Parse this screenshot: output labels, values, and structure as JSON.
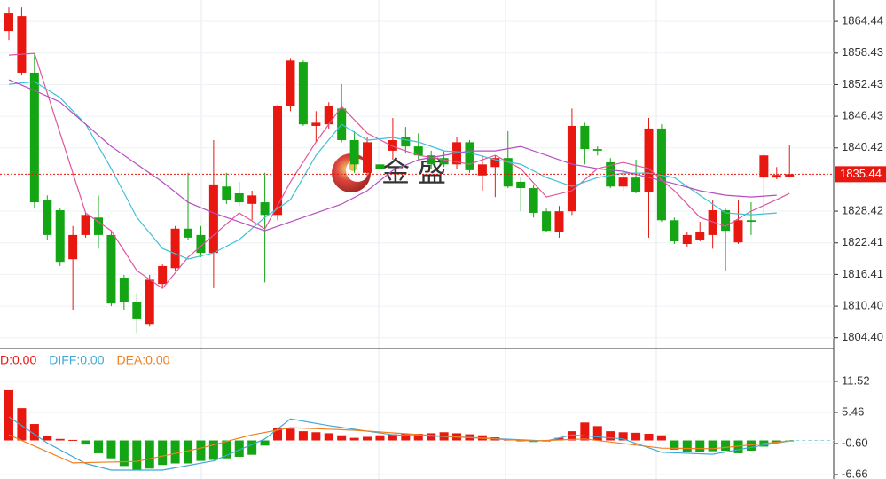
{
  "chart_data": [
    {
      "type": "candlestick",
      "watermark": "金 盛",
      "ylim": [
        1802.5,
        1868.5
      ],
      "yticks": [
        1864.44,
        1858.43,
        1852.43,
        1846.43,
        {
          "value": 1840.42,
          "label": "1840.42"
        },
        1828.42,
        1822.41,
        1816.41,
        {
          "value": 1810.4,
          "label": "1810.40"
        },
        {
          "value": 1804.4,
          "label": "1804.40"
        }
      ],
      "grid": true,
      "up_color": "#e8170f",
      "down_color": "#14a514",
      "open": [
        1862.59,
        1854.7,
        1854.7,
        1830.6,
        1828.6,
        1819.3,
        1823.9,
        1827.2,
        1823.9,
        1815.8,
        1811.2,
        1807.0,
        1814.6,
        1817.6,
        1825.1,
        1823.9,
        1820.5,
        1833.1,
        1831.8,
        1829.8,
        1830.1,
        1827.7,
        1848.3,
        1856.7,
        1844.6,
        1844.9,
        1847.9,
        1841.9,
        1835.7,
        1837.3,
        1839.9,
        1842.4,
        1840.7,
        1839.0,
        1838.5,
        1837.3,
        1841.5,
        1835.2,
        1836.8,
        1838.5,
        1834.0,
        1832.8,
        1828.4,
        1824.4,
        1828.4,
        1844.6,
        1840.2,
        1837.7,
        1833.1,
        1834.8,
        1832.0,
        1844.1,
        1826.7,
        1822.2,
        1823.0,
        1823.9,
        1828.6,
        1822.5,
        1826.7,
        1834.8,
        1834.8,
        1835.0
      ],
      "high": [
        1867.13,
        1867.13,
        1858.38,
        1831.4,
        1828.9,
        1825.6,
        1828.1,
        1831.4,
        1824.7,
        1816.3,
        1812.9,
        1816.3,
        1818.3,
        1825.6,
        1835.7,
        1825.6,
        1841.9,
        1835.7,
        1834.0,
        1832.3,
        1835.7,
        1848.6,
        1857.5,
        1857.0,
        1847.4,
        1849.1,
        1852.5,
        1843.6,
        1842.4,
        1841.9,
        1846.1,
        1844.4,
        1843.2,
        1839.9,
        1839.9,
        1842.4,
        1841.9,
        1839.0,
        1839.0,
        1843.6,
        1834.8,
        1833.5,
        1828.9,
        1829.4,
        1847.9,
        1845.2,
        1840.7,
        1838.5,
        1836.5,
        1838.2,
        1846.1,
        1844.9,
        1827.2,
        1824.4,
        1826.4,
        1830.6,
        1828.9,
        1830.6,
        1830.1,
        1839.4,
        1836.8,
        1841.0
      ],
      "low": [
        1860.9,
        1854.17,
        1828.9,
        1823.0,
        1818.0,
        1809.6,
        1823.4,
        1821.3,
        1810.4,
        1809.6,
        1805.3,
        1806.5,
        1813.8,
        1817.1,
        1823.0,
        1819.7,
        1813.8,
        1829.8,
        1829.4,
        1826.7,
        1814.9,
        1826.7,
        1847.4,
        1844.6,
        1841.5,
        1844.1,
        1841.5,
        1835.7,
        1834.8,
        1835.7,
        1838.2,
        1839.5,
        1838.2,
        1836.5,
        1836.8,
        1836.5,
        1835.7,
        1832.3,
        1831.1,
        1832.8,
        1828.4,
        1827.2,
        1824.4,
        1823.4,
        1827.7,
        1837.3,
        1839.0,
        1832.8,
        1832.3,
        1831.8,
        1823.4,
        1826.4,
        1822.2,
        1821.7,
        1822.7,
        1821.3,
        1817.1,
        1822.2,
        1823.9,
        1828.1,
        1834.5,
        1834.8
      ],
      "close": [
        1865.96,
        1865.45,
        1830.1,
        1823.9,
        1818.8,
        1823.9,
        1827.7,
        1823.9,
        1810.9,
        1811.2,
        1807.9,
        1815.4,
        1818.0,
        1825.1,
        1823.4,
        1820.5,
        1833.5,
        1830.6,
        1830.1,
        1831.4,
        1827.7,
        1848.3,
        1857.0,
        1844.9,
        1845.2,
        1848.3,
        1841.9,
        1837.3,
        1841.5,
        1836.5,
        1841.9,
        1840.7,
        1839.0,
        1837.3,
        1837.3,
        1841.5,
        1836.2,
        1837.3,
        1838.5,
        1833.1,
        1832.8,
        1828.1,
        1824.7,
        1828.4,
        1844.6,
        1840.2,
        1839.9,
        1833.1,
        1834.8,
        1832.0,
        1844.1,
        1826.7,
        1822.7,
        1823.9,
        1824.4,
        1828.6,
        1824.7,
        1826.7,
        1826.4,
        1839.0,
        1835.3,
        1835.44
      ],
      "lines": [
        {
          "color": "#e0569c",
          "x": [
            0,
            2,
            4,
            6,
            8,
            10,
            12,
            14,
            16,
            18,
            20,
            22,
            24,
            26,
            28,
            30,
            32,
            34,
            36,
            38,
            40,
            42,
            44,
            46,
            48,
            50,
            52,
            54,
            56,
            58,
            60,
            61
          ],
          "values": [
            1858.04,
            1858.38,
            1843.23,
            1828.08,
            1824.71,
            1817.13,
            1813.77,
            1819.66,
            1823.87,
            1828.08,
            1825.05,
            1833.97,
            1841.54,
            1848.28,
            1843.23,
            1840.7,
            1839.02,
            1838.18,
            1837.34,
            1839.02,
            1836.49,
            1831.11,
            1832.3,
            1836.49,
            1837.67,
            1836.49,
            1832.3,
            1827.24,
            1825.55,
            1828.41,
            1830.6,
            1831.78
          ]
        },
        {
          "color": "#3fc0d8",
          "x": [
            0,
            2,
            4,
            6,
            8,
            10,
            12,
            14,
            16,
            18,
            20,
            22,
            24,
            26,
            28,
            30,
            32,
            34,
            36,
            38,
            40,
            42,
            44,
            46,
            48,
            50,
            52,
            54,
            56,
            58,
            60
          ],
          "values": [
            1852.49,
            1852.99,
            1849.96,
            1844.91,
            1836.49,
            1827.24,
            1821.34,
            1819.32,
            1820.5,
            1823.03,
            1827.24,
            1830.6,
            1839.02,
            1844.91,
            1841.88,
            1842.39,
            1841.54,
            1839.86,
            1839.52,
            1838.18,
            1837.34,
            1834.81,
            1833.13,
            1834.81,
            1835.65,
            1835.65,
            1834.81,
            1831.44,
            1828.08,
            1827.74,
            1828.08
          ]
        },
        {
          "color": "#b54fc0",
          "x": [
            0,
            2,
            4,
            6,
            8,
            10,
            12,
            14,
            16,
            18,
            20,
            22,
            24,
            26,
            28,
            30,
            32,
            34,
            36,
            38,
            40,
            42,
            44,
            46,
            48,
            50,
            52,
            54,
            56,
            58,
            60
          ],
          "values": [
            1853.33,
            1851.31,
            1849.12,
            1844.91,
            1840.7,
            1837.34,
            1833.97,
            1830.1,
            1828.08,
            1826.39,
            1824.71,
            1826.39,
            1828.08,
            1829.76,
            1832.3,
            1836.16,
            1838.18,
            1839.02,
            1839.86,
            1839.86,
            1840.7,
            1839.02,
            1837.34,
            1836.49,
            1835.99,
            1834.81,
            1833.63,
            1832.3,
            1831.44,
            1831.11,
            1831.44
          ]
        }
      ],
      "last_price": {
        "value": 1835.44,
        "color": "#e8170f"
      }
    },
    {
      "type": "macd",
      "ylim": [
        -7.53,
        17.58
      ],
      "yticks": [
        11.52,
        5.46,
        {
          "value": -0.6,
          "label": "-0.60"
        },
        -6.66
      ],
      "legend": [
        {
          "text": "D:0.00",
          "color": "#e8170f"
        },
        {
          "text": "DIFF:0.00",
          "color": "#3fa9d8"
        },
        {
          "text": "DEA:0.00",
          "color": "#f08020"
        }
      ],
      "up_color": "#e8170f",
      "down_color": "#14a514",
      "values": [
        9.8,
        6.3,
        3.2,
        0.8,
        0.3,
        0.1,
        -0.8,
        -2.5,
        -3.5,
        -5.0,
        -5.8,
        -5.5,
        -4.8,
        -4.5,
        -4.5,
        -4.0,
        -3.8,
        -3.5,
        -3.2,
        -2.8,
        -1.0,
        2.5,
        2.3,
        1.8,
        1.6,
        1.4,
        1.0,
        0.5,
        0.7,
        1.0,
        1.2,
        1.3,
        1.3,
        1.4,
        1.6,
        1.4,
        1.2,
        1.0,
        0.6,
        0.2,
        -0.1,
        -0.3,
        -0.2,
        0.5,
        1.8,
        3.5,
        2.8,
        1.8,
        1.6,
        1.5,
        1.3,
        1.0,
        -1.8,
        -2.3,
        -2.3,
        -2.1,
        -2.0,
        -2.5,
        -2.0,
        -1.2,
        -0.4,
        -0.1
      ],
      "lines": [
        {
          "color": "#3fa9d8",
          "x": [
            0,
            3,
            6,
            8,
            12,
            16,
            20,
            22,
            25,
            30,
            36,
            42,
            44,
            48,
            51,
            55,
            59,
            61
          ],
          "values": [
            4.6,
            -0.5,
            -4.5,
            -5.8,
            -5.8,
            -4.0,
            0.3,
            4.2,
            2.9,
            1.1,
            0.6,
            -0.1,
            1.1,
            0.3,
            -2.3,
            -2.7,
            -0.9,
            -0.1
          ]
        },
        {
          "color": "#f08020",
          "x": [
            0,
            5,
            10,
            15,
            19,
            22,
            27,
            34,
            41,
            45,
            51,
            55,
            59,
            61
          ],
          "values": [
            1.1,
            -4.4,
            -4.1,
            -1.5,
            1.1,
            2.5,
            2.0,
            0.8,
            -0.1,
            0.3,
            -1.5,
            -1.6,
            -0.6,
            -0.1
          ]
        }
      ]
    }
  ]
}
